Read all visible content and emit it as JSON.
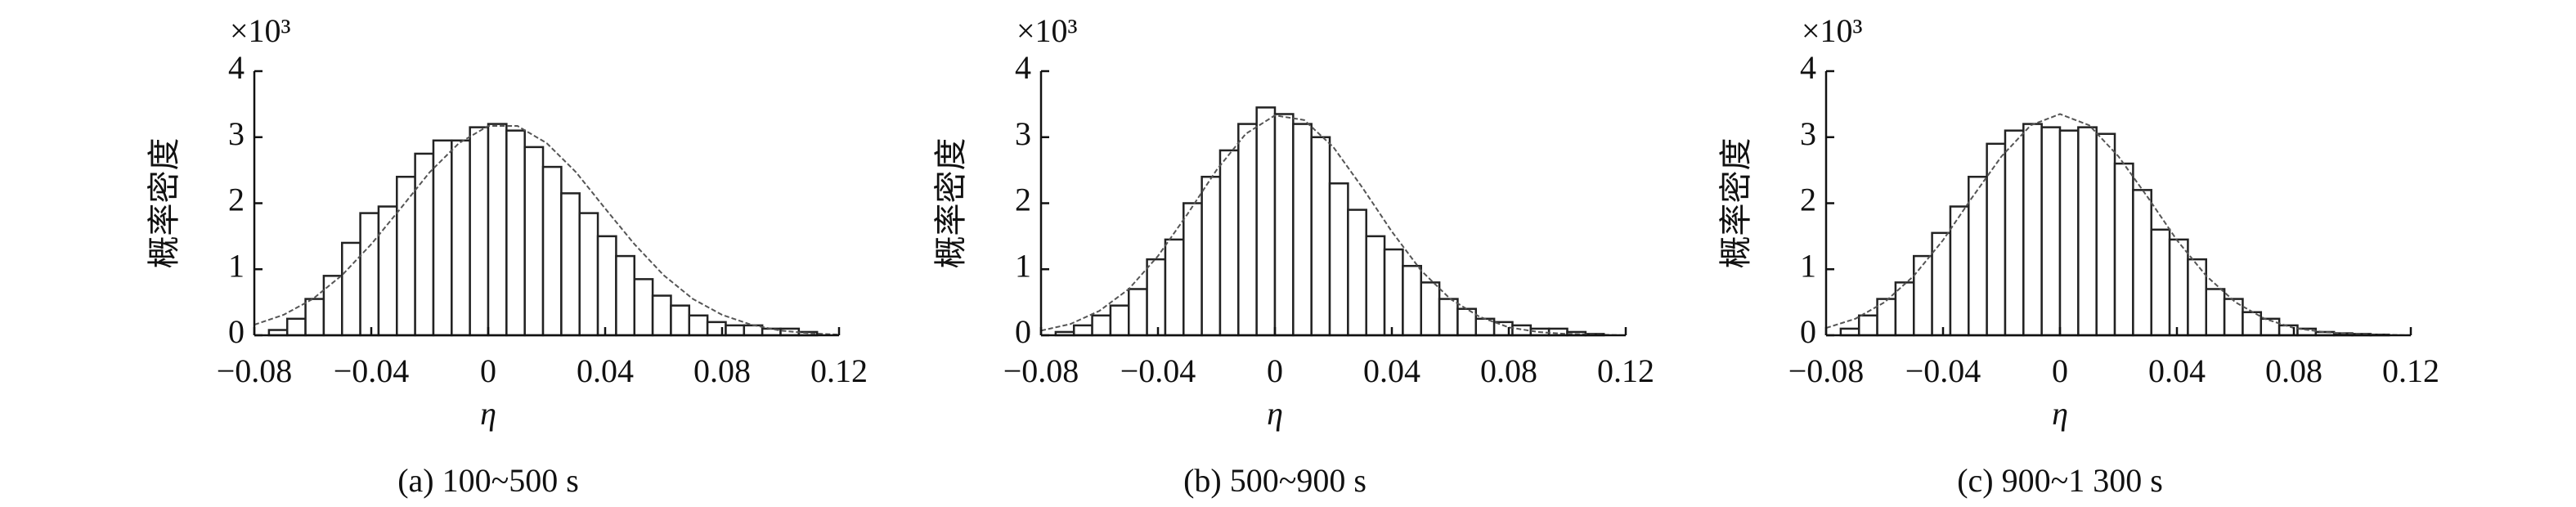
{
  "chart_data": [
    {
      "type": "histogram",
      "caption": "(a) 100~500 s",
      "xlabel": "η",
      "ylabel": "概率密度",
      "y_scale_label": "×10³",
      "xlim": [
        -0.08,
        0.12
      ],
      "xticks": [
        {
          "value": -0.08,
          "label": "−0.08"
        },
        {
          "value": -0.04,
          "label": "−0.04"
        },
        0,
        0.04,
        0.08,
        0.12
      ],
      "ylim": [
        0,
        4
      ],
      "yticks": [
        0,
        1,
        2,
        3,
        4
      ],
      "color": "#ffffff",
      "edgecolor": "#222222",
      "bins": [
        -0.075,
        -0.06875,
        -0.0625,
        -0.05625,
        -0.05,
        -0.04375,
        -0.0375,
        -0.03125,
        -0.025,
        -0.01875,
        -0.0125,
        -0.00625,
        0,
        0.00625,
        0.0125,
        0.01875,
        0.025,
        0.03125,
        0.0375,
        0.04375,
        0.05,
        0.05625,
        0.0625,
        0.06875,
        0.075,
        0.08125,
        0.0875,
        0.09375,
        0.1,
        0.10625,
        0.1125
      ],
      "values": [
        0.08,
        0.25,
        0.55,
        0.9,
        1.4,
        1.85,
        1.95,
        2.4,
        2.75,
        2.95,
        2.95,
        3.15,
        3.2,
        3.1,
        2.85,
        2.55,
        2.15,
        1.85,
        1.5,
        1.2,
        0.85,
        0.6,
        0.45,
        0.3,
        0.2,
        0.15,
        0.15,
        0.1,
        0.1,
        0.05
      ],
      "fit": {
        "color": "#555555",
        "x": [
          -0.08,
          -0.07,
          -0.06,
          -0.05,
          -0.04,
          -0.03,
          -0.02,
          -0.01,
          0,
          0.01,
          0.02,
          0.03,
          0.04,
          0.05,
          0.06,
          0.07,
          0.08,
          0.09,
          0.1,
          0.11,
          0.12
        ],
        "values": [
          0.16,
          0.31,
          0.55,
          0.91,
          1.38,
          1.92,
          2.47,
          2.91,
          3.17,
          3.17,
          2.91,
          2.47,
          1.92,
          1.38,
          0.91,
          0.55,
          0.31,
          0.16,
          0.07,
          0.03,
          0.01
        ]
      }
    },
    {
      "type": "histogram",
      "caption": "(b) 500~900 s",
      "xlabel": "η",
      "ylabel": "概率密度",
      "y_scale_label": "×10³",
      "xlim": [
        -0.08,
        0.12
      ],
      "xticks": [
        {
          "value": -0.08,
          "label": "−0.08"
        },
        {
          "value": -0.04,
          "label": "−0.04"
        },
        0,
        0.04,
        0.08,
        0.12
      ],
      "ylim": [
        0,
        4
      ],
      "yticks": [
        0,
        1,
        2,
        3,
        4
      ],
      "color": "#ffffff",
      "edgecolor": "#222222",
      "bins": [
        -0.075,
        -0.06875,
        -0.0625,
        -0.05625,
        -0.05,
        -0.04375,
        -0.0375,
        -0.03125,
        -0.025,
        -0.01875,
        -0.0125,
        -0.00625,
        0,
        0.00625,
        0.0125,
        0.01875,
        0.025,
        0.03125,
        0.0375,
        0.04375,
        0.05,
        0.05625,
        0.0625,
        0.06875,
        0.075,
        0.08125,
        0.0875,
        0.09375,
        0.1,
        0.10625,
        0.1125
      ],
      "values": [
        0.05,
        0.15,
        0.3,
        0.45,
        0.7,
        1.15,
        1.45,
        2.0,
        2.4,
        2.8,
        3.2,
        3.45,
        3.35,
        3.2,
        3.0,
        2.3,
        1.9,
        1.5,
        1.3,
        1.05,
        0.8,
        0.55,
        0.4,
        0.25,
        0.2,
        0.15,
        0.1,
        0.1,
        0.05,
        0.02
      ],
      "fit": {
        "color": "#555555",
        "x": [
          -0.08,
          -0.07,
          -0.06,
          -0.05,
          -0.04,
          -0.03,
          -0.02,
          -0.01,
          0,
          0.01,
          0.02,
          0.03,
          0.04,
          0.05,
          0.06,
          0.07,
          0.08,
          0.09,
          0.1,
          0.11,
          0.12
        ],
        "values": [
          0.07,
          0.17,
          0.37,
          0.7,
          1.2,
          1.83,
          2.5,
          3.05,
          3.33,
          3.26,
          2.85,
          2.23,
          1.57,
          0.98,
          0.55,
          0.28,
          0.12,
          0.05,
          0.02,
          0.01,
          0
        ]
      }
    },
    {
      "type": "histogram",
      "caption": "(c) 900~1 300 s",
      "xlabel": "η",
      "ylabel": "概率密度",
      "y_scale_label": "×10³",
      "xlim": [
        -0.08,
        0.12
      ],
      "xticks": [
        {
          "value": -0.08,
          "label": "−0.08"
        },
        {
          "value": -0.04,
          "label": "−0.04"
        },
        0,
        0.04,
        0.08,
        0.12
      ],
      "ylim": [
        0,
        4
      ],
      "yticks": [
        0,
        1,
        2,
        3,
        4
      ],
      "color": "#ffffff",
      "edgecolor": "#222222",
      "bins": [
        -0.075,
        -0.06875,
        -0.0625,
        -0.05625,
        -0.05,
        -0.04375,
        -0.0375,
        -0.03125,
        -0.025,
        -0.01875,
        -0.0125,
        -0.00625,
        0,
        0.00625,
        0.0125,
        0.01875,
        0.025,
        0.03125,
        0.0375,
        0.04375,
        0.05,
        0.05625,
        0.0625,
        0.06875,
        0.075,
        0.08125,
        0.0875,
        0.09375,
        0.1,
        0.10625,
        0.1125
      ],
      "values": [
        0.1,
        0.3,
        0.55,
        0.8,
        1.2,
        1.55,
        1.95,
        2.4,
        2.9,
        3.1,
        3.2,
        3.15,
        3.1,
        3.15,
        3.05,
        2.6,
        2.2,
        1.6,
        1.45,
        1.15,
        0.7,
        0.55,
        0.35,
        0.25,
        0.15,
        0.1,
        0.05,
        0.03,
        0.02,
        0.01
      ],
      "fit": {
        "color": "#555555",
        "x": [
          -0.08,
          -0.07,
          -0.06,
          -0.05,
          -0.04,
          -0.03,
          -0.02,
          -0.01,
          0,
          0.01,
          0.02,
          0.03,
          0.04,
          0.05,
          0.06,
          0.07,
          0.08,
          0.09,
          0.1,
          0.11,
          0.12
        ],
        "values": [
          0.11,
          0.25,
          0.5,
          0.9,
          1.44,
          2.09,
          2.71,
          3.18,
          3.35,
          3.18,
          2.71,
          2.09,
          1.44,
          0.9,
          0.5,
          0.25,
          0.11,
          0.05,
          0.02,
          0.01,
          0
        ]
      }
    }
  ]
}
